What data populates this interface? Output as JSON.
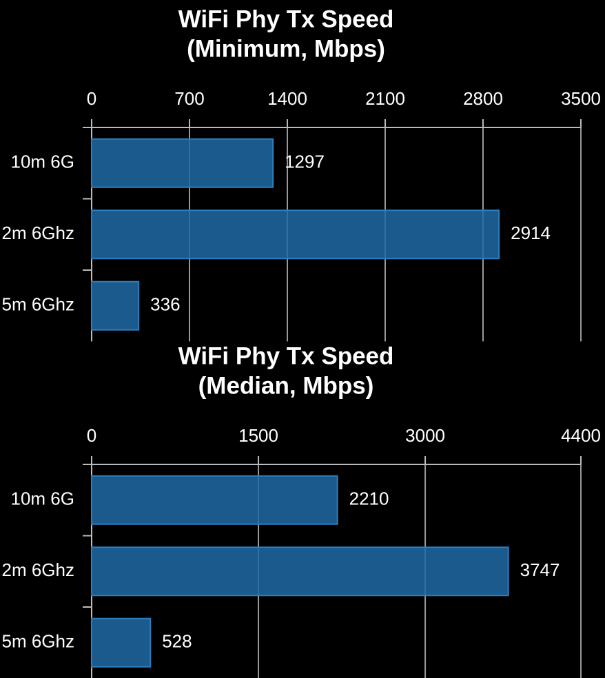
{
  "chart_data": [
    {
      "type": "bar",
      "orientation": "horizontal",
      "title": "WiFi Phy Tx Speed",
      "subtitle": "(Minimum, Mbps)",
      "categories": [
        "10m 6G",
        "2m 6Ghz",
        "5m 6Ghz"
      ],
      "values": [
        1297,
        2914,
        336
      ],
      "color": "#1f6aa5",
      "xlim": [
        0,
        3500
      ],
      "xticks": [
        0,
        700,
        1400,
        2100,
        2800,
        3500
      ],
      "grid": true
    },
    {
      "type": "bar",
      "orientation": "horizontal",
      "title": "WiFi Phy Tx Speed",
      "subtitle": "(Median, Mbps)",
      "categories": [
        "10m 6G",
        "2m 6Ghz",
        "5m 6Ghz"
      ],
      "values": [
        2210,
        3747,
        528
      ],
      "color": "#1f6aa5",
      "xlim": [
        0,
        4400
      ],
      "xticks": [
        0,
        1500,
        3000,
        4400
      ],
      "grid": true
    }
  ]
}
